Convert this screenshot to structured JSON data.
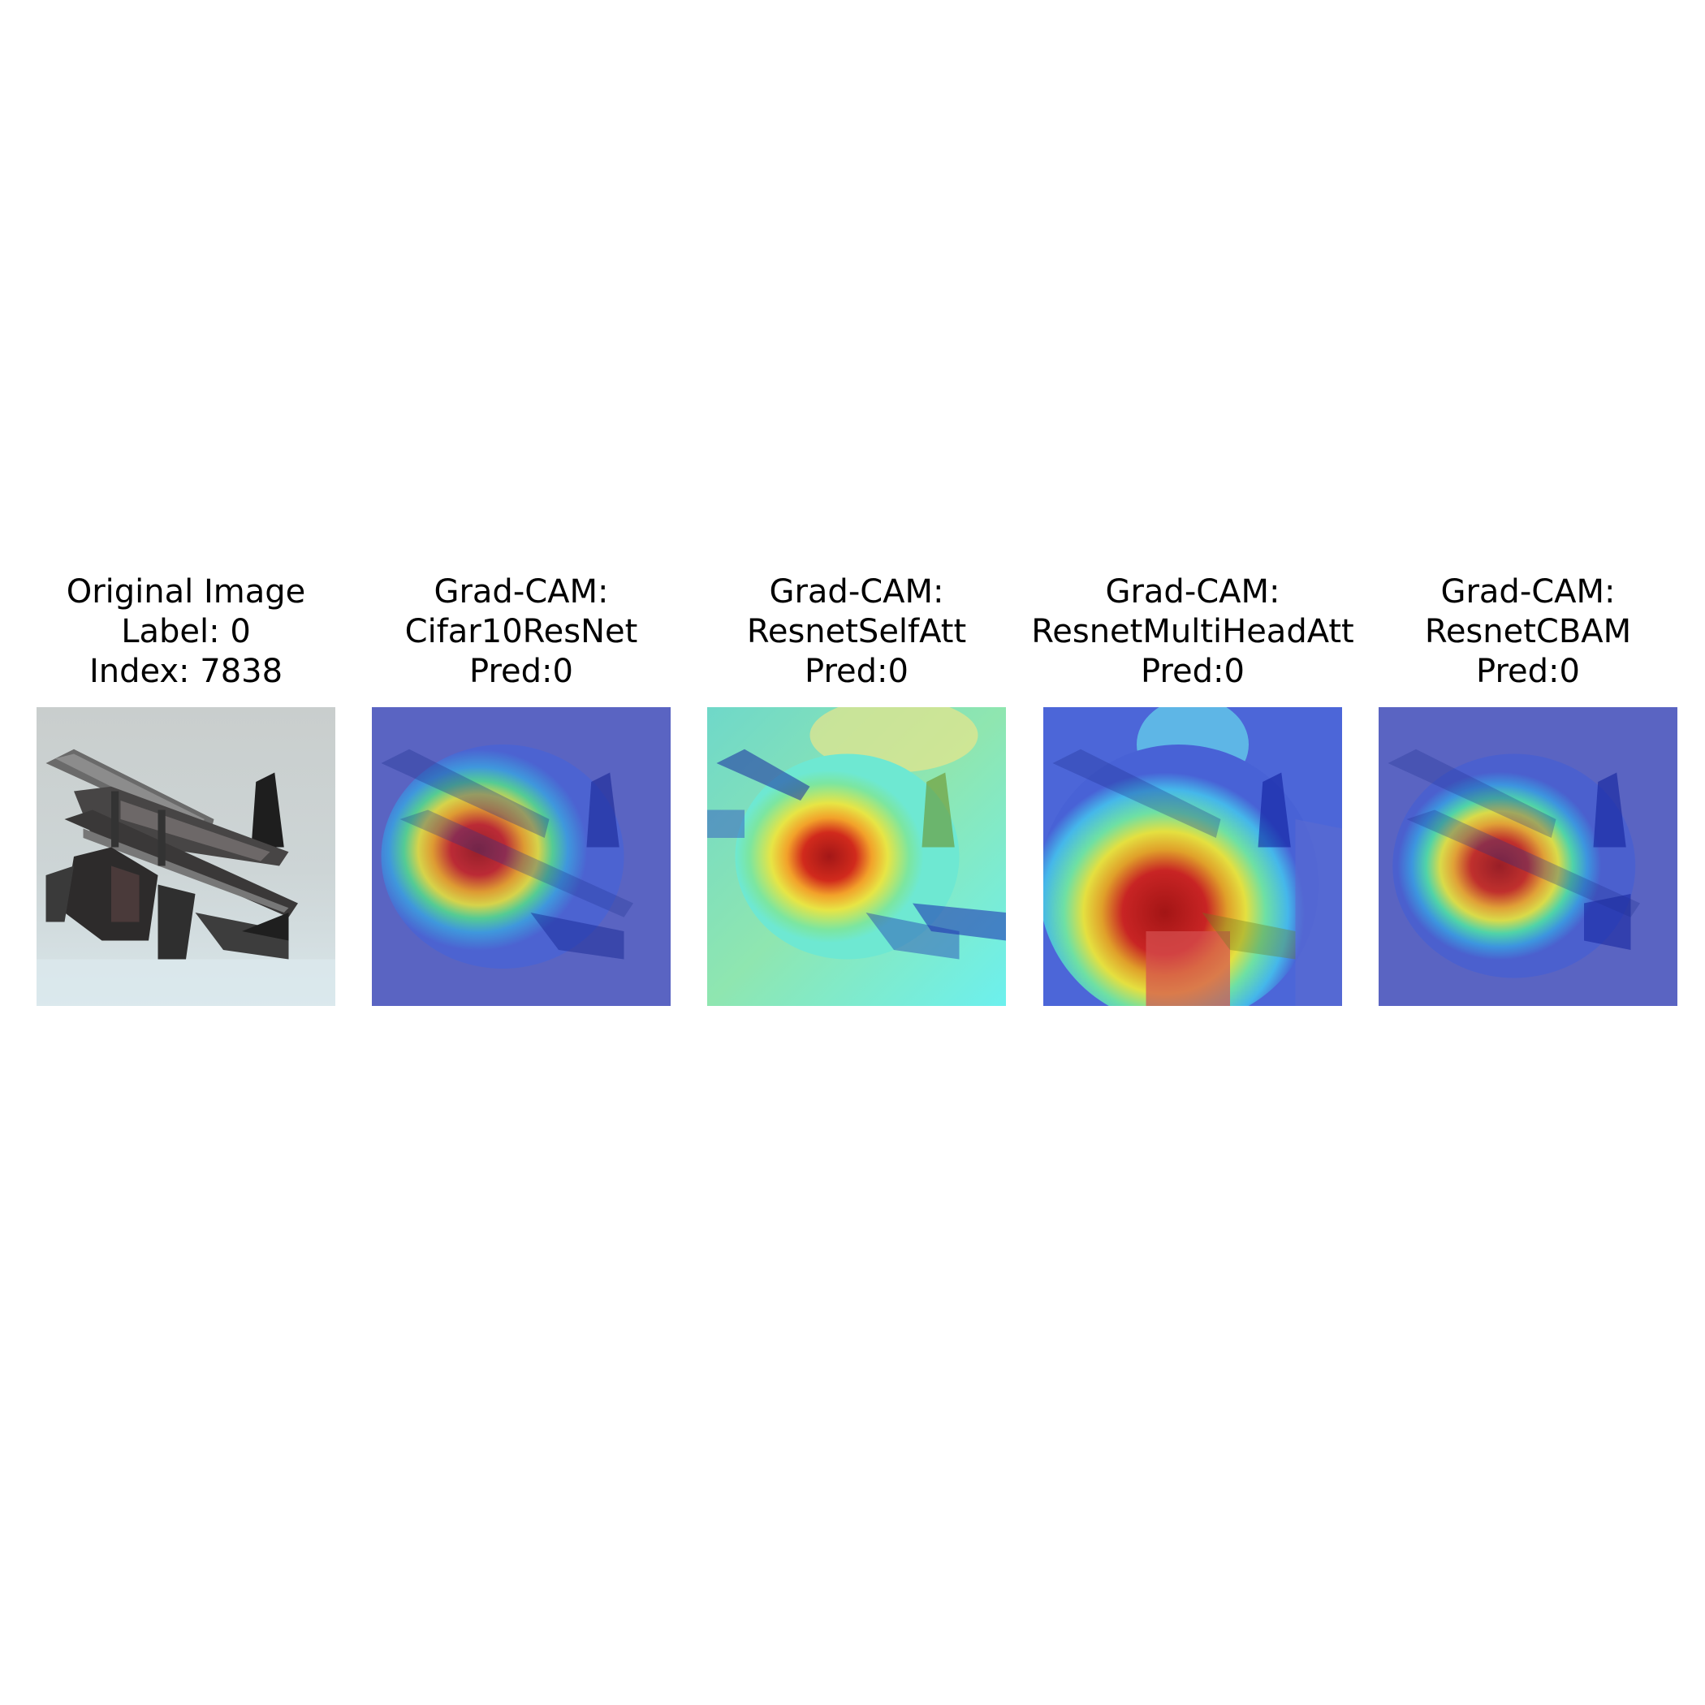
{
  "panels": [
    {
      "kind": "original",
      "title_lines": [
        "Original Image",
        "Label: 0",
        "Index: 7838"
      ]
    },
    {
      "kind": "gradcam",
      "title_lines": [
        "Grad-CAM:",
        "Cifar10ResNet",
        "Pred:0"
      ]
    },
    {
      "kind": "gradcam",
      "title_lines": [
        "Grad-CAM:",
        "ResnetSelfAtt",
        "Pred:0"
      ]
    },
    {
      "kind": "gradcam",
      "title_lines": [
        "Grad-CAM:",
        "ResnetMultiHeadAtt",
        "Pred:0"
      ]
    },
    {
      "kind": "gradcam",
      "title_lines": [
        "Grad-CAM:",
        "ResnetCBAM",
        "Pred:0"
      ]
    }
  ]
}
